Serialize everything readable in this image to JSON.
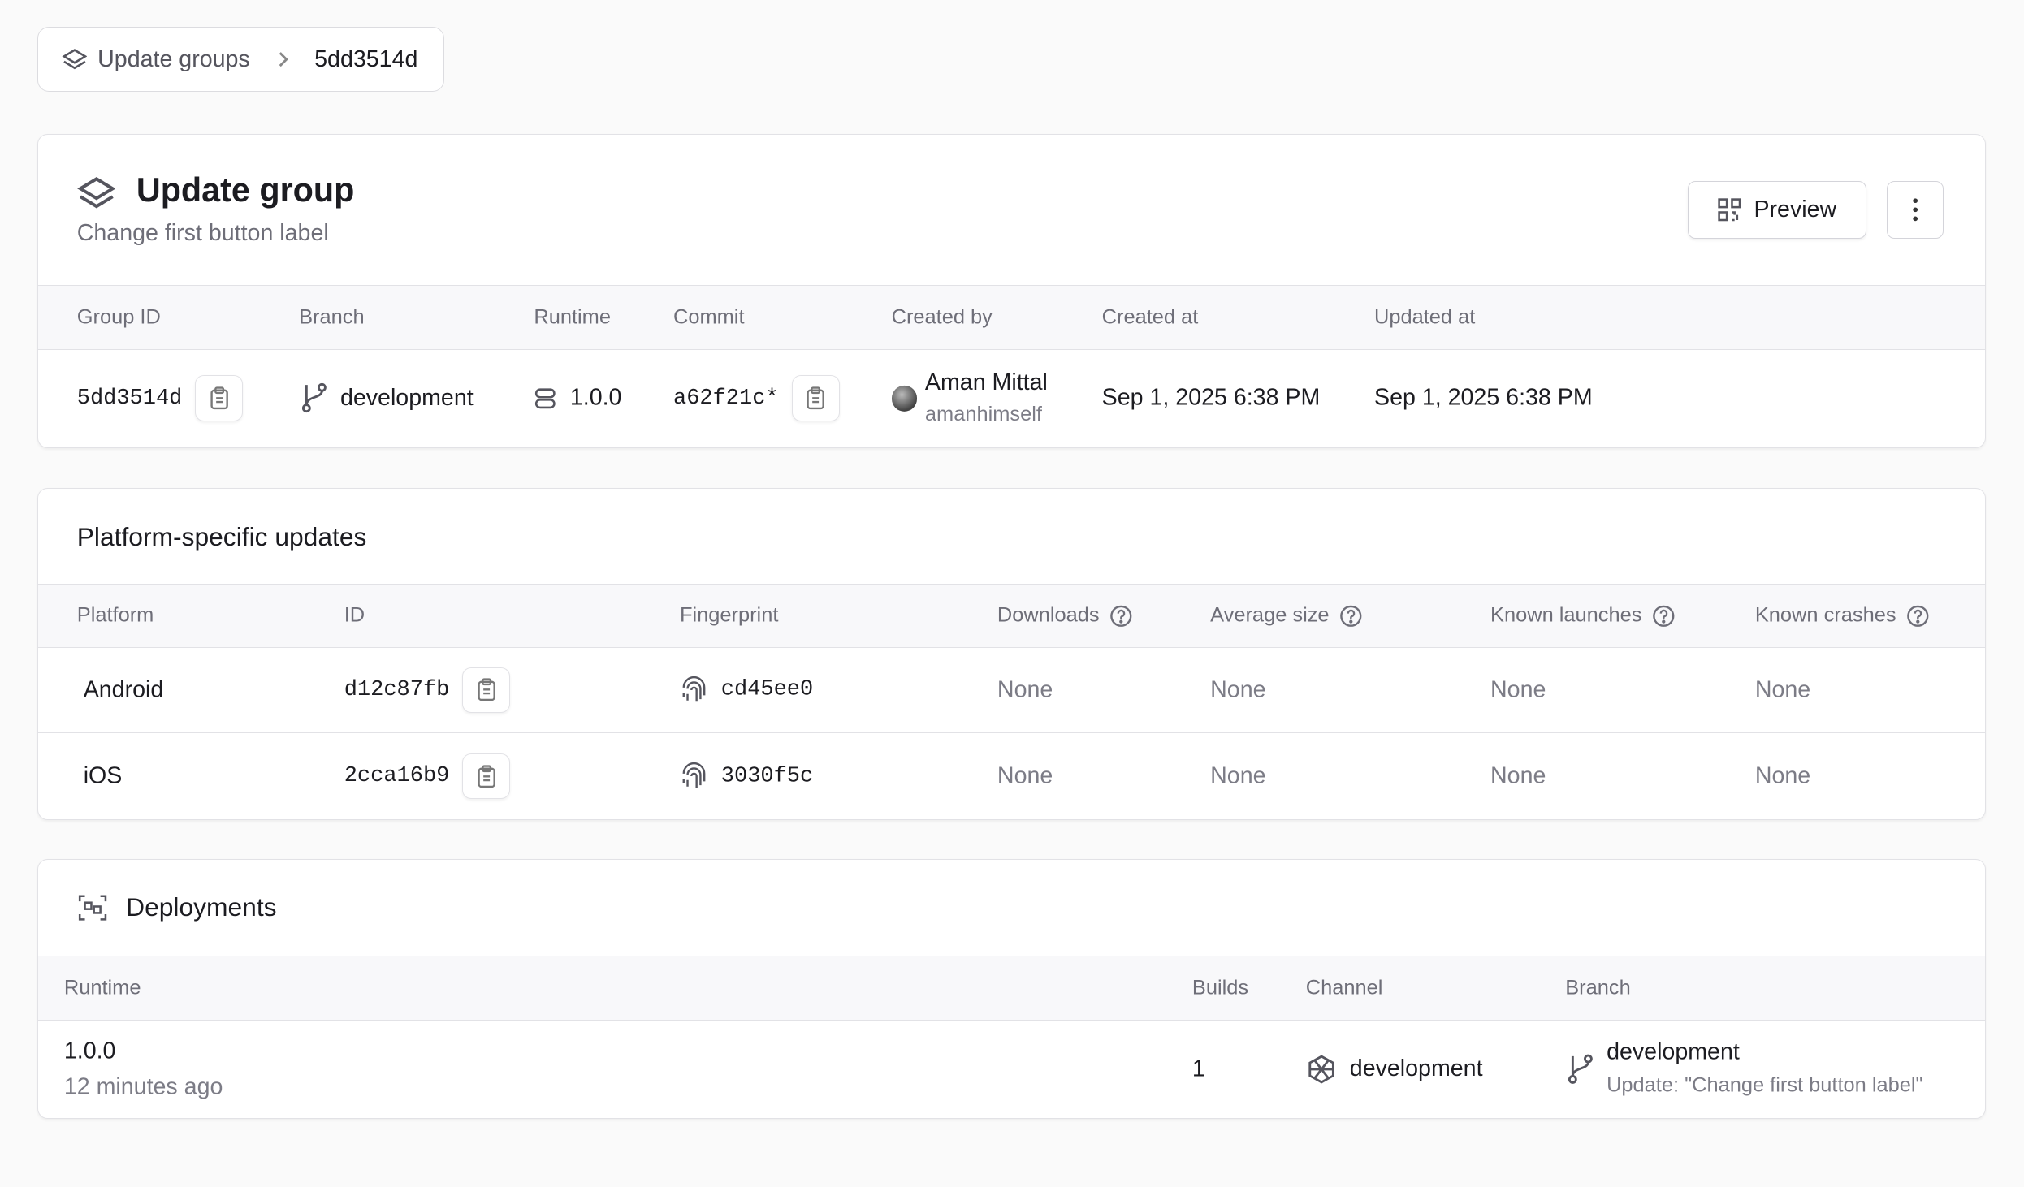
{
  "breadcrumb": {
    "parent": "Update groups",
    "current": "5dd3514d"
  },
  "header": {
    "title": "Update group",
    "subtitle": "Change first button label",
    "preview_label": "Preview"
  },
  "group_table": {
    "columns": [
      "Group ID",
      "Branch",
      "Runtime",
      "Commit",
      "Created by",
      "Created at",
      "Updated at"
    ],
    "row": {
      "group_id": "5dd3514d",
      "branch": "development",
      "runtime": "1.0.0",
      "commit": "a62f21c*",
      "creator_name": "Aman Mittal",
      "creator_username": "amanhimself",
      "created_at": "Sep 1, 2025 6:38 PM",
      "updated_at": "Sep 1, 2025 6:38 PM"
    }
  },
  "platform": {
    "title": "Platform-specific updates",
    "columns": [
      "Platform",
      "ID",
      "Fingerprint",
      "Downloads",
      "Average size",
      "Known launches",
      "Known crashes"
    ],
    "rows": [
      {
        "platform": "Android",
        "id": "d12c87fb",
        "fingerprint": "cd45ee0",
        "downloads": "None",
        "avg_size": "None",
        "launches": "None",
        "crashes": "None"
      },
      {
        "platform": "iOS",
        "id": "2cca16b9",
        "fingerprint": "3030f5c",
        "downloads": "None",
        "avg_size": "None",
        "launches": "None",
        "crashes": "None"
      }
    ]
  },
  "deployments": {
    "title": "Deployments",
    "columns": [
      "Runtime",
      "Builds",
      "Channel",
      "Branch"
    ],
    "row": {
      "runtime": "1.0.0",
      "time_ago": "12 minutes ago",
      "builds": "1",
      "channel": "development",
      "branch": "development",
      "branch_message": "Update: \"Change first button label\""
    }
  }
}
